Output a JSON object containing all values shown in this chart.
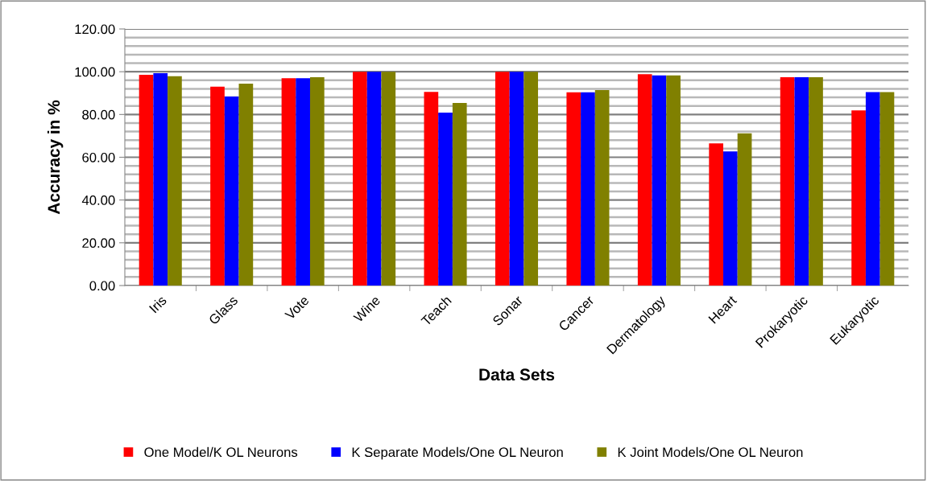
{
  "chart_data": {
    "type": "bar",
    "xlabel": "Data Sets",
    "ylabel": "Accuracy in %",
    "categories": [
      "Iris",
      "Glass",
      "Vote",
      "Wine",
      "Teach",
      "Sonar",
      "Cancer",
      "Dermatology",
      "Heart",
      "Prokaryotic",
      "Eukaryotic"
    ],
    "series": [
      {
        "name": "One Model/K OL Neurons",
        "color": "#ff0000",
        "values": [
          98.6,
          93.0,
          97.0,
          100,
          90.6,
          100,
          90.4,
          98.8,
          66.5,
          97.4,
          81.9
        ]
      },
      {
        "name": "K Separate Models/One OL Neuron",
        "color": "#0000ff",
        "values": [
          99.3,
          88.4,
          97.0,
          100,
          80.9,
          100,
          90.4,
          98.3,
          62.7,
          97.4,
          90.5
        ]
      },
      {
        "name": "K Joint Models/One OL Neuron",
        "color": "#808000",
        "values": [
          97.9,
          94.4,
          97.4,
          100,
          85.4,
          100,
          91.4,
          98.3,
          71.2,
          97.4,
          90.5
        ]
      }
    ],
    "ylim": [
      0,
      120
    ],
    "yticks": [
      {
        "value": 0,
        "label": "0.00"
      },
      {
        "value": 4,
        "label": null
      },
      {
        "value": 8,
        "label": null
      },
      {
        "value": 12,
        "label": null
      },
      {
        "value": 16,
        "label": null
      },
      {
        "value": 20,
        "label": "20.00"
      },
      {
        "value": 24,
        "label": null
      },
      {
        "value": 28,
        "label": null
      },
      {
        "value": 32,
        "label": null
      },
      {
        "value": 36,
        "label": null
      },
      {
        "value": 40,
        "label": "40.00"
      },
      {
        "value": 44,
        "label": null
      },
      {
        "value": 48,
        "label": null
      },
      {
        "value": 52,
        "label": null
      },
      {
        "value": 56,
        "label": null
      },
      {
        "value": 60,
        "label": "60.00"
      },
      {
        "value": 64,
        "label": null
      },
      {
        "value": 68,
        "label": null
      },
      {
        "value": 72,
        "label": null
      },
      {
        "value": 76,
        "label": null
      },
      {
        "value": 80,
        "label": "80.00"
      },
      {
        "value": 84,
        "label": null
      },
      {
        "value": 88,
        "label": null
      },
      {
        "value": 92,
        "label": null
      },
      {
        "value": 96,
        "label": null
      },
      {
        "value": 100,
        "label": "100.00"
      },
      {
        "value": 104,
        "label": null
      },
      {
        "value": 108,
        "label": null
      },
      {
        "value": 112,
        "label": null
      },
      {
        "value": 116,
        "label": null
      },
      {
        "value": 120,
        "label": "120.00"
      }
    ],
    "grid": "y",
    "legend": "bottom"
  }
}
